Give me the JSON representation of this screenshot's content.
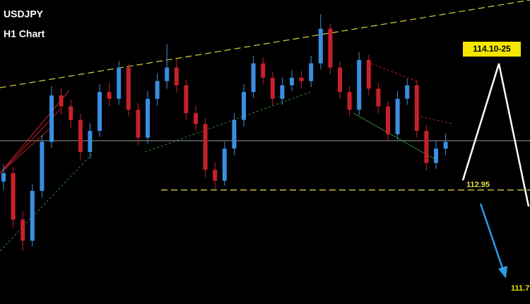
{
  "chart_data": {
    "type": "candlestick",
    "title": "USDJPY",
    "subtitle": "H1 Chart",
    "ylim": [
      111.6,
      115.2
    ],
    "up_color": "#3b8ee0",
    "down_color": "#c8202a",
    "open": [
      113.05,
      113.15,
      112.6,
      112.35,
      112.94,
      113.52,
      114.07,
      113.94,
      113.78,
      113.4,
      113.65,
      114.11,
      114.03,
      114.4,
      113.9,
      113.57,
      114.03,
      114.24,
      114.4,
      114.19,
      113.86,
      113.73,
      113.19,
      113.06,
      113.44,
      113.78,
      114.11,
      114.45,
      114.28,
      114.03,
      114.19,
      114.28,
      114.24,
      114.45,
      114.86,
      114.4,
      114.11,
      113.9,
      114.49,
      114.15,
      113.94,
      113.61,
      114.03,
      114.19,
      113.65,
      113.27,
      113.44
    ],
    "high": [
      113.25,
      113.22,
      112.7,
      113.02,
      113.6,
      114.18,
      114.15,
      114.02,
      113.85,
      113.74,
      114.2,
      114.22,
      114.48,
      114.45,
      113.98,
      114.12,
      114.33,
      114.68,
      114.5,
      114.26,
      113.95,
      113.8,
      113.28,
      113.52,
      113.86,
      114.2,
      114.54,
      114.52,
      114.35,
      114.28,
      114.37,
      114.36,
      114.54,
      115.03,
      114.92,
      114.47,
      114.18,
      114.58,
      114.55,
      114.22,
      114.0,
      114.12,
      114.27,
      114.25,
      113.72,
      113.53,
      113.62
    ],
    "low": [
      112.95,
      112.5,
      112.23,
      112.28,
      112.86,
      113.45,
      113.84,
      113.68,
      113.3,
      113.32,
      113.58,
      113.94,
      113.96,
      113.82,
      113.48,
      113.5,
      113.95,
      114.15,
      114.1,
      113.78,
      113.65,
      113.1,
      112.96,
      113.0,
      113.36,
      113.7,
      114.04,
      114.2,
      113.95,
      113.96,
      114.12,
      114.15,
      114.17,
      114.38,
      114.32,
      114.03,
      113.82,
      113.84,
      114.07,
      113.86,
      113.52,
      113.55,
      113.96,
      113.57,
      113.18,
      113.2,
      113.36
    ],
    "close": [
      113.15,
      112.6,
      112.35,
      112.94,
      113.52,
      114.07,
      113.94,
      113.78,
      113.4,
      113.65,
      114.11,
      114.03,
      114.4,
      113.9,
      113.57,
      114.03,
      114.24,
      114.4,
      114.19,
      113.86,
      113.73,
      113.19,
      113.06,
      113.44,
      113.78,
      114.11,
      114.45,
      114.28,
      114.03,
      114.19,
      114.28,
      114.24,
      114.45,
      114.86,
      114.4,
      114.11,
      113.9,
      114.49,
      114.15,
      113.94,
      113.61,
      114.03,
      114.19,
      113.65,
      113.27,
      113.44,
      113.52
    ],
    "levels": [
      {
        "value": 112.95,
        "label": "112.95",
        "color": "#e8e04a"
      }
    ],
    "annotations": [
      "114.10-25",
      "111.7"
    ]
  }
}
